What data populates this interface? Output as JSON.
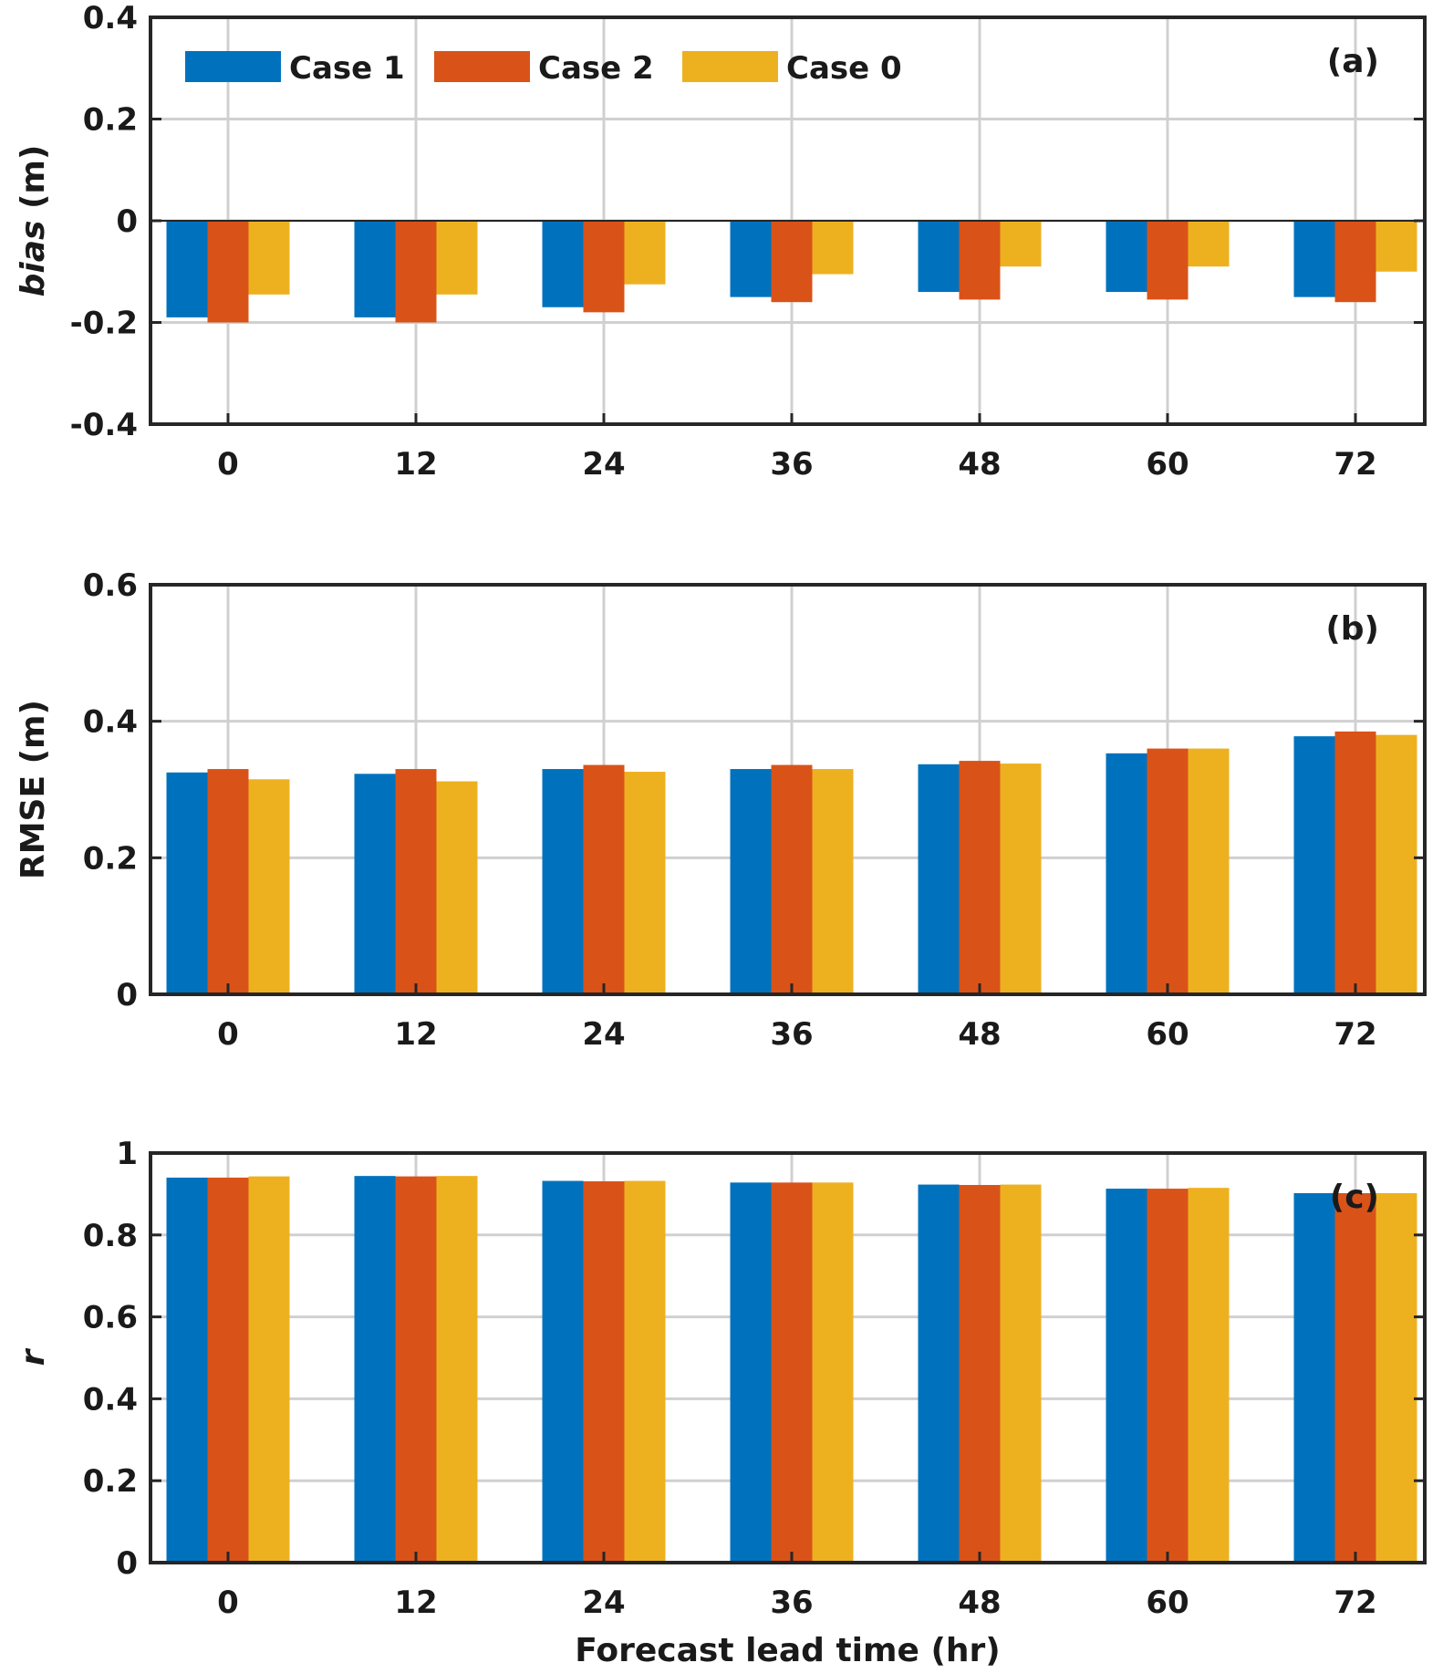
{
  "chart_data": [
    {
      "type": "bar",
      "panel": "(a)",
      "ylabel_italic": "bias",
      "ylabel_rest": " (m)",
      "xlabel": "",
      "ylim": [
        -0.4,
        0.4
      ],
      "yticks": [
        "-0.4",
        "-0.2",
        "0",
        "0.2",
        "0.4"
      ],
      "yticks_values": [
        -0.4,
        -0.2,
        0,
        0.2,
        0.4
      ],
      "categories": [
        "0",
        "12",
        "24",
        "36",
        "48",
        "60",
        "72"
      ],
      "grid": true,
      "legend": "top-left",
      "series": [
        {
          "name": "Case 1",
          "color": "#0072BD",
          "values": [
            -0.19,
            -0.19,
            -0.17,
            -0.15,
            -0.14,
            -0.14,
            -0.15
          ]
        },
        {
          "name": "Case 2",
          "color": "#D95319",
          "values": [
            -0.2,
            -0.2,
            -0.18,
            -0.16,
            -0.155,
            -0.155,
            -0.16
          ]
        },
        {
          "name": "Case 0",
          "color": "#EDB120",
          "values": [
            -0.145,
            -0.145,
            -0.125,
            -0.105,
            -0.09,
            -0.09,
            -0.1
          ]
        }
      ]
    },
    {
      "type": "bar",
      "panel": "(b)",
      "ylabel": "RMSE (m)",
      "xlabel": "",
      "ylim": [
        0,
        0.6
      ],
      "yticks": [
        "0",
        "0.2",
        "0.4",
        "0.6"
      ],
      "yticks_values": [
        0,
        0.2,
        0.4,
        0.6
      ],
      "categories": [
        "0",
        "12",
        "24",
        "36",
        "48",
        "60",
        "72"
      ],
      "grid": true,
      "series": [
        {
          "name": "Case 1",
          "color": "#0072BD",
          "values": [
            0.325,
            0.323,
            0.33,
            0.33,
            0.337,
            0.353,
            0.378
          ]
        },
        {
          "name": "Case 2",
          "color": "#D95319",
          "values": [
            0.33,
            0.33,
            0.336,
            0.336,
            0.342,
            0.36,
            0.385
          ]
        },
        {
          "name": "Case 0",
          "color": "#EDB120",
          "values": [
            0.315,
            0.312,
            0.326,
            0.33,
            0.338,
            0.36,
            0.38
          ]
        }
      ]
    },
    {
      "type": "bar",
      "panel": "(c)",
      "ylabel_italic": "r",
      "ylabel_rest": "",
      "xlabel": "Forecast lead time (hr)",
      "ylim": [
        0,
        1
      ],
      "yticks": [
        "0",
        "0.2",
        "0.4",
        "0.6",
        "0.8",
        "1"
      ],
      "yticks_values": [
        0,
        0.2,
        0.4,
        0.6,
        0.8,
        1
      ],
      "categories": [
        "0",
        "12",
        "24",
        "36",
        "48",
        "60",
        "72"
      ],
      "grid": true,
      "series": [
        {
          "name": "Case 1",
          "color": "#0072BD",
          "values": [
            0.94,
            0.944,
            0.932,
            0.928,
            0.923,
            0.913,
            0.902
          ]
        },
        {
          "name": "Case 2",
          "color": "#D95319",
          "values": [
            0.94,
            0.943,
            0.931,
            0.928,
            0.922,
            0.913,
            0.902
          ]
        },
        {
          "name": "Case 0",
          "color": "#EDB120",
          "values": [
            0.943,
            0.944,
            0.932,
            0.928,
            0.923,
            0.915,
            0.902
          ]
        }
      ]
    }
  ]
}
